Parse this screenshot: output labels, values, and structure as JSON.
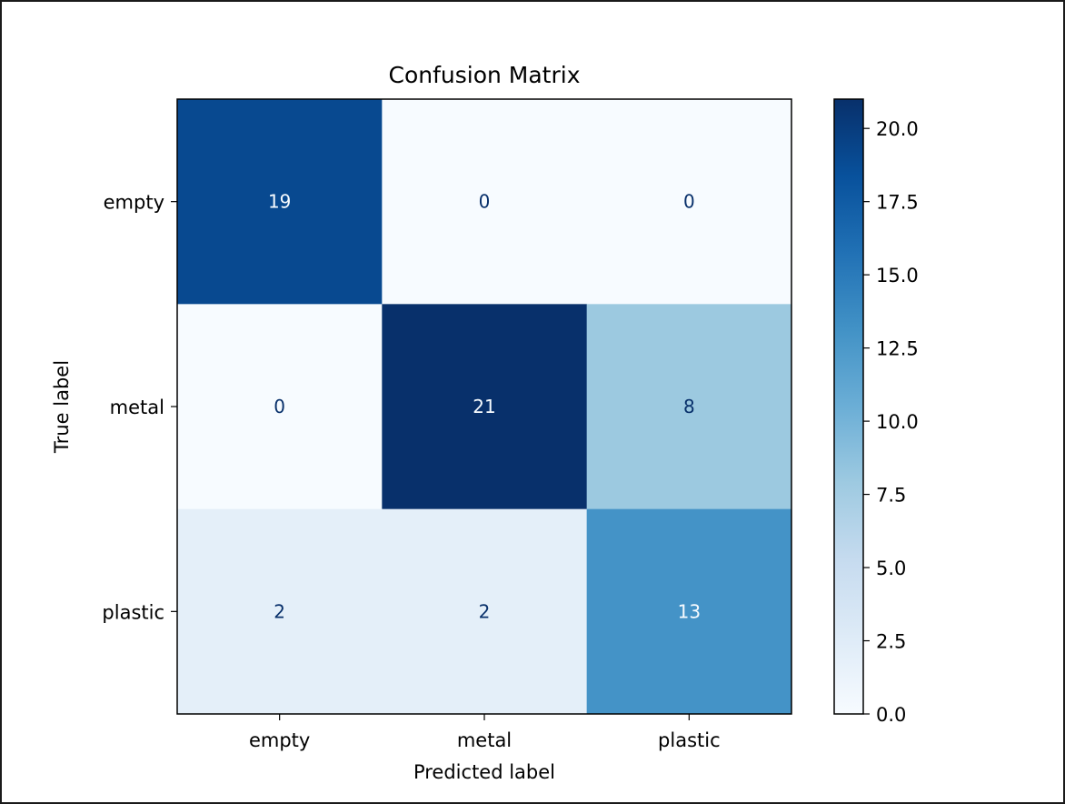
{
  "chart_data": {
    "type": "heatmap",
    "title": "Confusion Matrix",
    "xlabel": "Predicted label",
    "ylabel": "True label",
    "x_categories": [
      "empty",
      "metal",
      "plastic"
    ],
    "y_categories": [
      "empty",
      "metal",
      "plastic"
    ],
    "values": [
      [
        19,
        0,
        0
      ],
      [
        0,
        21,
        8
      ],
      [
        2,
        2,
        13
      ]
    ],
    "colormap": "Blues",
    "colorbar": {
      "range": [
        0,
        21
      ],
      "ticks": [
        0.0,
        2.5,
        5.0,
        7.5,
        10.0,
        12.5,
        15.0,
        17.5,
        20.0
      ],
      "tick_labels": [
        "0.0",
        "2.5",
        "5.0",
        "7.5",
        "10.0",
        "12.5",
        "15.0",
        "17.5",
        "20.0"
      ]
    },
    "grid": false
  }
}
